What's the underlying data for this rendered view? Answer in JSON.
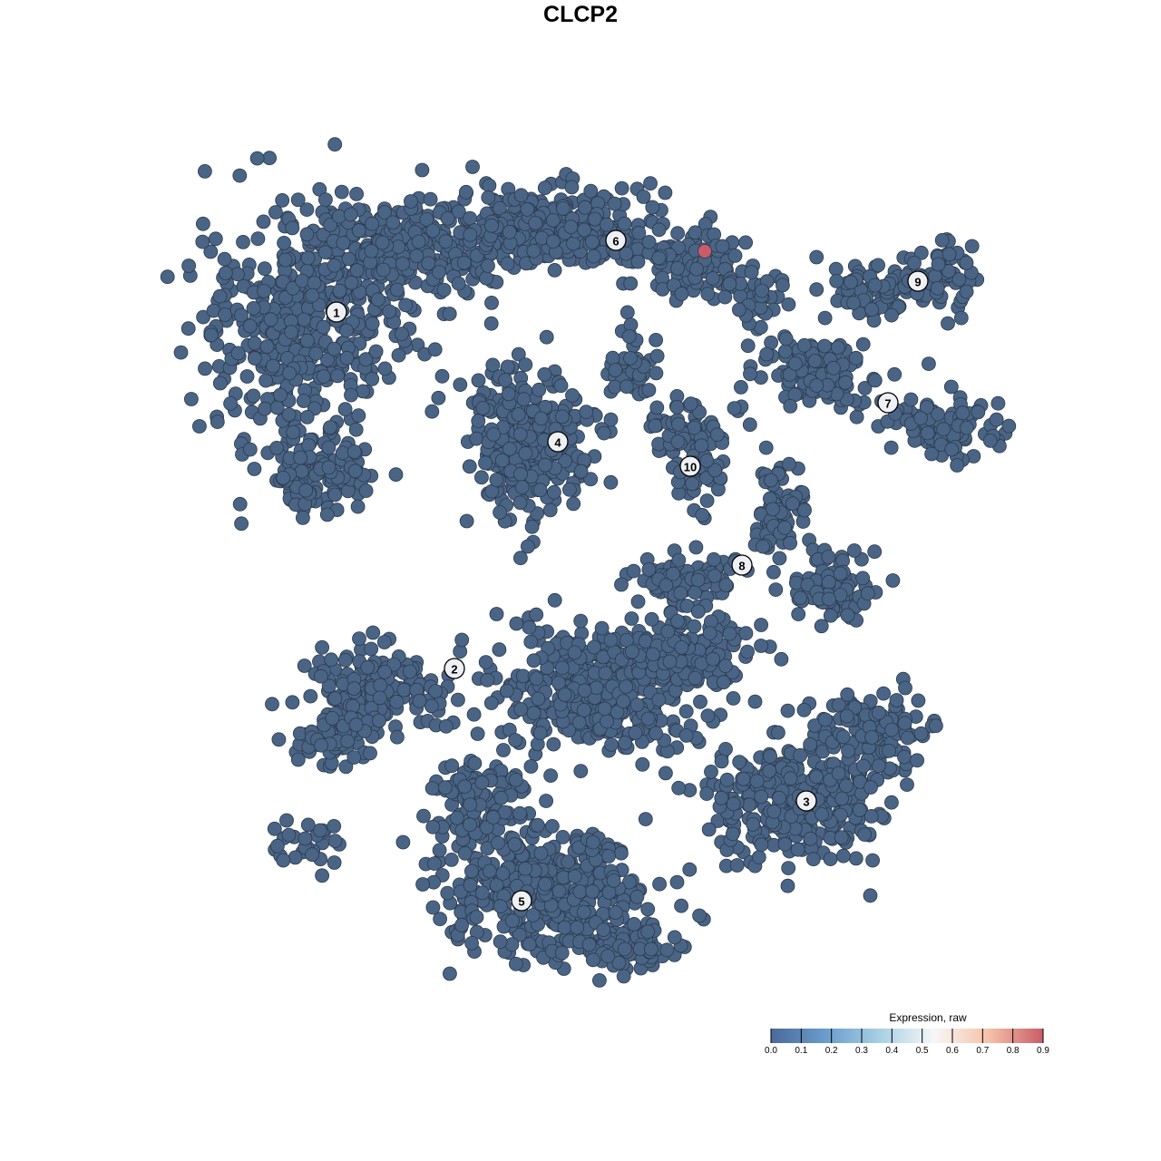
{
  "chart_data": {
    "type": "scatter",
    "title": "CLCP2",
    "xlabel": "",
    "ylabel": "",
    "grid": false,
    "axes_visible": false,
    "point_color_default": "#4a6485",
    "clusters": [
      {
        "label": "1",
        "centroid": [
          -26.9,
          29.6
        ]
      },
      {
        "label": "2",
        "centroid": [
          -13.9,
          -9.7
        ]
      },
      {
        "label": "3",
        "centroid": [
          24.9,
          -24.3
        ]
      },
      {
        "label": "4",
        "centroid": [
          -2.5,
          15.3
        ]
      },
      {
        "label": "5",
        "centroid": [
          -6.5,
          -35.3
        ]
      },
      {
        "label": "6",
        "centroid": [
          3.9,
          37.5
        ]
      },
      {
        "label": "7",
        "centroid": [
          33.9,
          19.6
        ]
      },
      {
        "label": "8",
        "centroid": [
          17.8,
          1.7
        ]
      },
      {
        "label": "9",
        "centroid": [
          37.2,
          33.0
        ]
      },
      {
        "label": "10",
        "centroid": [
          12.1,
          12.6
        ]
      }
    ],
    "baseline_expression": 0.0,
    "highlighted_points": [
      {
        "x": 13.7,
        "y": 36.3,
        "expression": 0.9
      }
    ],
    "colorbar": {
      "title": "Expression, raw",
      "range": [
        0.0,
        0.9
      ],
      "ticks": [
        "0.0",
        "0.1",
        "0.2",
        "0.3",
        "0.4",
        "0.5",
        "0.6",
        "0.7",
        "0.8",
        "0.9"
      ],
      "colors": [
        "#4a6a9a",
        "#6a9ccc",
        "#a8d0e4",
        "#f7f7f7",
        "#f6c2a8",
        "#c95c68"
      ]
    }
  }
}
